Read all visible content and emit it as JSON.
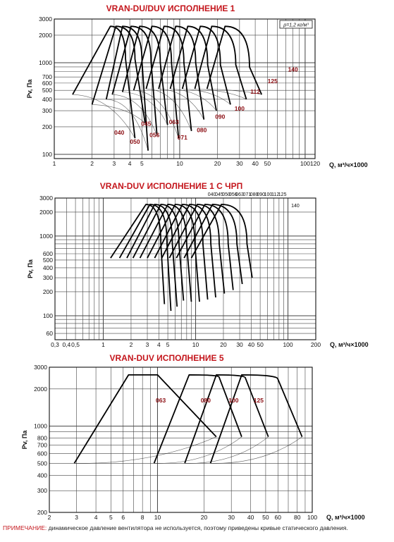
{
  "chart_data": [
    {
      "type": "line",
      "title": "VRAN-DU/DUV ИСПОЛНЕНИЕ 1",
      "xlabel": "Q, м³/ч×1000",
      "ylabel": "Pv, Па",
      "x_scale": "log",
      "y_scale": "log",
      "xlim": [
        1,
        120
      ],
      "ylim": [
        90,
        3000
      ],
      "x_ticks": [
        {
          "v": 1,
          "label": "1"
        },
        {
          "v": 2,
          "label": "2"
        },
        {
          "v": 3,
          "label": "3"
        },
        {
          "v": 4,
          "label": "4"
        },
        {
          "v": 5,
          "label": "5"
        },
        {
          "v": 10,
          "label": "10"
        },
        {
          "v": 20,
          "label": "20"
        },
        {
          "v": 30,
          "label": "30"
        },
        {
          "v": 40,
          "label": "40"
        },
        {
          "v": 50,
          "label": "50"
        },
        {
          "v": 100,
          "label": "100"
        },
        {
          "v": 120,
          "label": "120"
        }
      ],
      "y_ticks": [
        {
          "v": 100,
          "label": "100"
        },
        {
          "v": 200,
          "label": "200"
        },
        {
          "v": 300,
          "label": "300"
        },
        {
          "v": 400,
          "label": "400"
        },
        {
          "v": 500,
          "label": "500"
        },
        {
          "v": 600,
          "label": "600"
        },
        {
          "v": 700,
          "label": "700"
        },
        {
          "v": 1000,
          "label": "1000"
        },
        {
          "v": 2000,
          "label": "2000"
        },
        {
          "v": 3000,
          "label": "3000"
        }
      ],
      "annotation": "ρ=1,2 кг/м³",
      "size_labels": [
        {
          "text": "040",
          "x": 3.3,
          "y": 165
        },
        {
          "text": "045",
          "x": 5.4,
          "y": 205
        },
        {
          "text": "050",
          "x": 4.4,
          "y": 130
        },
        {
          "text": "056",
          "x": 6.3,
          "y": 155
        },
        {
          "text": "063",
          "x": 9.0,
          "y": 215
        },
        {
          "text": "071",
          "x": 10.5,
          "y": 145
        },
        {
          "text": "080",
          "x": 15.0,
          "y": 175
        },
        {
          "text": "090",
          "x": 21.0,
          "y": 245
        },
        {
          "text": "100",
          "x": 30.0,
          "y": 300
        },
        {
          "text": "112",
          "x": 40.0,
          "y": 460
        },
        {
          "text": "125",
          "x": 55.0,
          "y": 600
        },
        {
          "text": "140",
          "x": 80.0,
          "y": 800
        }
      ],
      "series": [
        {
          "name": "040",
          "x": [
            1.4,
            2.8,
            3.7,
            4.4
          ],
          "y": [
            450,
            2500,
            1100,
            150
          ]
        },
        {
          "name": "045",
          "x": [
            2.0,
            3.1,
            4.4,
            5.3
          ],
          "y": [
            350,
            2500,
            1100,
            220
          ]
        },
        {
          "name": "050",
          "x": [
            2.6,
            3.5,
            5.0,
            5.6
          ],
          "y": [
            400,
            2500,
            1050,
            110
          ]
        },
        {
          "name": "056",
          "x": [
            2.9,
            4.1,
            5.9,
            6.6
          ],
          "y": [
            450,
            2500,
            1050,
            160
          ]
        },
        {
          "name": "063",
          "x": [
            3.5,
            4.8,
            7.0,
            8.0
          ],
          "y": [
            480,
            2500,
            1000,
            210
          ]
        },
        {
          "name": "071",
          "x": [
            4.3,
            6.0,
            8.6,
            9.8
          ],
          "y": [
            500,
            2500,
            1000,
            150
          ]
        },
        {
          "name": "080",
          "x": [
            5.4,
            7.5,
            10.8,
            12.4
          ],
          "y": [
            520,
            2500,
            1000,
            180
          ]
        },
        {
          "name": "090",
          "x": [
            6.8,
            9.3,
            13.4,
            15.6
          ],
          "y": [
            520,
            2500,
            1000,
            240
          ]
        },
        {
          "name": "100",
          "x": [
            8.4,
            11.6,
            16.7,
            19.6
          ],
          "y": [
            520,
            2500,
            950,
            300
          ]
        },
        {
          "name": "112",
          "x": [
            10.5,
            14.6,
            21.1,
            25.4
          ],
          "y": [
            520,
            2500,
            950,
            350
          ]
        },
        {
          "name": "125",
          "x": [
            13.2,
            18.0,
            28.0,
            34.0
          ],
          "y": [
            520,
            2500,
            950,
            400
          ]
        },
        {
          "name": "140",
          "x": [
            16.5,
            23.0,
            36.0,
            45.0
          ],
          "y": [
            520,
            2500,
            900,
            450
          ]
        }
      ]
    },
    {
      "type": "line",
      "title": "VRAN-DUV ИСПОЛНЕНИЕ 1 С ЧРП",
      "xlabel": "Q, м³/ч×1000",
      "ylabel": "Pv, Па",
      "x_scale": "log",
      "y_scale": "log",
      "xlim": [
        0.3,
        200
      ],
      "ylim": [
        50,
        3000
      ],
      "x_ticks": [
        {
          "v": 0.3,
          "label": "0,3"
        },
        {
          "v": 0.4,
          "label": "0,4"
        },
        {
          "v": 0.5,
          "label": "0,5"
        },
        {
          "v": 1,
          "label": "1"
        },
        {
          "v": 2,
          "label": "2"
        },
        {
          "v": 3,
          "label": "3"
        },
        {
          "v": 4,
          "label": "4"
        },
        {
          "v": 5,
          "label": "5"
        },
        {
          "v": 10,
          "label": "10"
        },
        {
          "v": 20,
          "label": "20"
        },
        {
          "v": 30,
          "label": "30"
        },
        {
          "v": 40,
          "label": "40"
        },
        {
          "v": 50,
          "label": "50"
        },
        {
          "v": 100,
          "label": "100"
        },
        {
          "v": 200,
          "label": "200"
        }
      ],
      "y_ticks": [
        {
          "v": 60,
          "label": "60"
        },
        {
          "v": 100,
          "label": "100"
        },
        {
          "v": 200,
          "label": "200"
        },
        {
          "v": 300,
          "label": "300"
        },
        {
          "v": 400,
          "label": "400"
        },
        {
          "v": 500,
          "label": "500"
        },
        {
          "v": 600,
          "label": "600"
        },
        {
          "v": 1000,
          "label": "1000"
        },
        {
          "v": 2000,
          "label": "2000"
        },
        {
          "v": 3000,
          "label": "3000"
        }
      ],
      "size_labels": [
        {
          "text": "040",
          "x": 15,
          "y": 3000
        },
        {
          "text": "045",
          "x": 18,
          "y": 3000
        },
        {
          "text": "050",
          "x": 21.5,
          "y": 3000
        },
        {
          "text": "056",
          "x": 25.5,
          "y": 3000
        },
        {
          "text": "063",
          "x": 30,
          "y": 3000
        },
        {
          "text": "071",
          "x": 36,
          "y": 3000
        },
        {
          "text": "080",
          "x": 43,
          "y": 3000
        },
        {
          "text": "090",
          "x": 51,
          "y": 3000
        },
        {
          "text": "100",
          "x": 61,
          "y": 3000
        },
        {
          "text": "112",
          "x": 73,
          "y": 3000
        },
        {
          "text": "125",
          "x": 87,
          "y": 3000
        },
        {
          "text": "140",
          "x": 120,
          "y": 2300
        }
      ],
      "series": [
        {
          "name": "040",
          "x": [
            1.2,
            2.9,
            4.2,
            4.6
          ],
          "y": [
            530,
            2500,
            800,
            140
          ]
        },
        {
          "name": "045",
          "x": [
            1.5,
            3.2,
            4.9,
            5.4
          ],
          "y": [
            530,
            2500,
            800,
            115
          ]
        },
        {
          "name": "050",
          "x": [
            1.8,
            3.6,
            5.6,
            6.3
          ],
          "y": [
            530,
            2500,
            800,
            130
          ]
        },
        {
          "name": "056",
          "x": [
            2.1,
            4.2,
            6.6,
            7.4
          ],
          "y": [
            530,
            2500,
            800,
            155
          ]
        },
        {
          "name": "063",
          "x": [
            2.5,
            5.0,
            8.0,
            9.0
          ],
          "y": [
            530,
            2500,
            800,
            150
          ]
        },
        {
          "name": "071",
          "x": [
            3.0,
            6.0,
            9.8,
            11.0
          ],
          "y": [
            530,
            2500,
            800,
            150
          ]
        },
        {
          "name": "080",
          "x": [
            3.6,
            7.2,
            12.0,
            13.5
          ],
          "y": [
            530,
            2500,
            800,
            160
          ]
        },
        {
          "name": "090",
          "x": [
            4.3,
            8.6,
            14.6,
            16.5
          ],
          "y": [
            530,
            2500,
            800,
            170
          ]
        },
        {
          "name": "100",
          "x": [
            5.2,
            10.4,
            18.0,
            20.5
          ],
          "y": [
            530,
            2500,
            800,
            190
          ]
        },
        {
          "name": "112",
          "x": [
            6.2,
            12.6,
            22.5,
            25.5
          ],
          "y": [
            530,
            2500,
            800,
            210
          ]
        },
        {
          "name": "125",
          "x": [
            7.5,
            15.2,
            28.0,
            32.0
          ],
          "y": [
            530,
            2500,
            800,
            250
          ]
        },
        {
          "name": "140",
          "x": [
            9.0,
            19.0,
            36.0,
            41.0
          ],
          "y": [
            530,
            2500,
            800,
            300
          ]
        }
      ]
    },
    {
      "type": "line",
      "title": "VRAN-DUV ИСПОЛНЕНИЕ 5",
      "xlabel": "Q, м³/ч×1000",
      "ylabel": "Pv, Па",
      "x_scale": "log",
      "y_scale": "log",
      "xlim": [
        2,
        100
      ],
      "ylim": [
        200,
        3000
      ],
      "x_ticks": [
        {
          "v": 2,
          "label": "2"
        },
        {
          "v": 3,
          "label": "3"
        },
        {
          "v": 4,
          "label": "4"
        },
        {
          "v": 5,
          "label": "5"
        },
        {
          "v": 6,
          "label": "6"
        },
        {
          "v": 8,
          "label": "8"
        },
        {
          "v": 10,
          "label": "10"
        },
        {
          "v": 20,
          "label": "20"
        },
        {
          "v": 30,
          "label": "30"
        },
        {
          "v": 40,
          "label": "40"
        },
        {
          "v": 50,
          "label": "50"
        },
        {
          "v": 60,
          "label": "60"
        },
        {
          "v": 80,
          "label": "80"
        },
        {
          "v": 100,
          "label": "100"
        }
      ],
      "y_ticks": [
        {
          "v": 200,
          "label": "200"
        },
        {
          "v": 300,
          "label": "300"
        },
        {
          "v": 400,
          "label": "400"
        },
        {
          "v": 500,
          "label": "500"
        },
        {
          "v": 600,
          "label": "600"
        },
        {
          "v": 700,
          "label": "700"
        },
        {
          "v": 800,
          "label": "800"
        },
        {
          "v": 1000,
          "label": "1000"
        },
        {
          "v": 2000,
          "label": "2000"
        },
        {
          "v": 3000,
          "label": "3000"
        }
      ],
      "size_labels": [
        {
          "text": "063",
          "x": 10.5,
          "y": 1550
        },
        {
          "text": "080",
          "x": 20.5,
          "y": 1550
        },
        {
          "text": "100",
          "x": 31.0,
          "y": 1550
        },
        {
          "text": "125",
          "x": 45.0,
          "y": 1550
        }
      ],
      "series": [
        {
          "name": "063",
          "x": [
            2.9,
            6.5,
            10.0,
            24.0
          ],
          "y": [
            500,
            2600,
            2600,
            820
          ]
        },
        {
          "name": "080",
          "x": [
            9.5,
            16.0,
            25.0,
            35.0
          ],
          "y": [
            500,
            2600,
            2500,
            820
          ]
        },
        {
          "name": "100",
          "x": [
            15.0,
            24.0,
            37.0,
            52.0
          ],
          "y": [
            500,
            2600,
            2450,
            820
          ]
        },
        {
          "name": "125",
          "x": [
            22.0,
            35.0,
            60.0,
            86.0
          ],
          "y": [
            500,
            2600,
            2400,
            820
          ]
        }
      ]
    }
  ],
  "note": {
    "label": "ПРИМЕЧАНИЕ:",
    "text": " динамическое давление вентилятора не используется, поэтому приведены кривые статического давления."
  }
}
